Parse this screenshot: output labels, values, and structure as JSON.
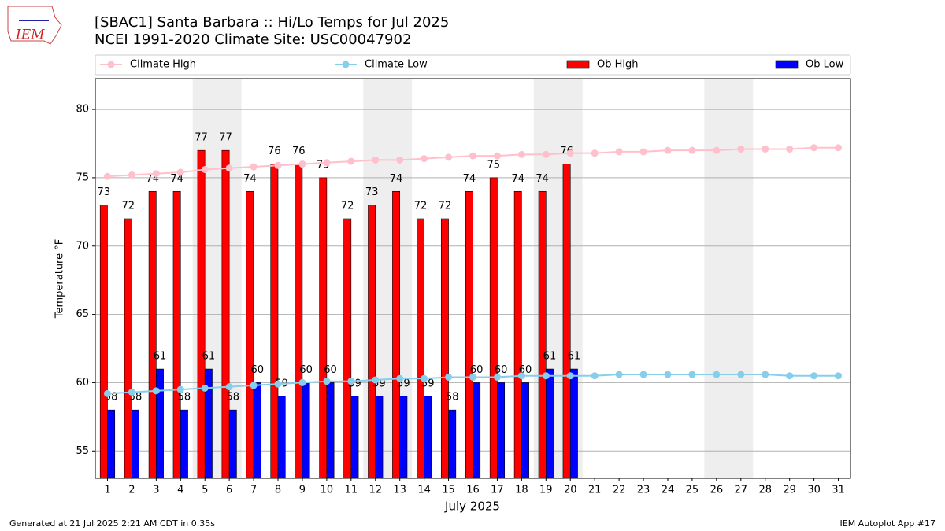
{
  "logo_text": "IEM",
  "footer": {
    "left": "Generated at 21 Jul 2025 2:21 AM CDT in 0.35s",
    "right": "IEM Autoplot App #17"
  },
  "chart_data": {
    "type": "bar",
    "title": "[SBAC1] Santa Barbara :: Hi/Lo Temps for Jul 2025",
    "subtitle": "NCEI 1991-2020 Climate Site: USC00047902",
    "x_label": "July 2025",
    "y_label": "Temperature °F",
    "x": [
      1,
      2,
      3,
      4,
      5,
      6,
      7,
      8,
      9,
      10,
      11,
      12,
      13,
      14,
      15,
      16,
      17,
      18,
      19,
      20,
      21,
      22,
      23,
      24,
      25,
      26,
      27,
      28,
      29,
      30,
      31
    ],
    "xlim": [
      0.5,
      31.5
    ],
    "xticks": [
      1,
      2,
      3,
      4,
      5,
      6,
      7,
      8,
      9,
      10,
      11,
      12,
      13,
      14,
      15,
      16,
      17,
      18,
      19,
      20,
      21,
      22,
      23,
      24,
      25,
      26,
      27,
      28,
      29,
      30,
      31
    ],
    "ylim": [
      53,
      82.25
    ],
    "yticks": [
      55,
      60,
      65,
      70,
      75,
      80
    ],
    "grid": true,
    "shaded_ranges": [
      [
        5,
        6
      ],
      [
        12,
        13
      ],
      [
        19,
        20
      ],
      [
        26,
        27
      ]
    ],
    "shade_color": "#eeeeee",
    "series": [
      {
        "name": "Climate High",
        "type": "line",
        "color": "#ffc0cb",
        "values": [
          75.1,
          75.2,
          75.3,
          75.4,
          75.6,
          75.7,
          75.8,
          75.9,
          76.0,
          76.1,
          76.2,
          76.3,
          76.3,
          76.4,
          76.5,
          76.6,
          76.6,
          76.7,
          76.7,
          76.8,
          76.8,
          76.9,
          76.9,
          77.0,
          77.0,
          77.0,
          77.1,
          77.1,
          77.1,
          77.2,
          77.2
        ]
      },
      {
        "name": "Climate Low",
        "type": "line",
        "color": "#87ceeb",
        "values": [
          59.2,
          59.3,
          59.4,
          59.5,
          59.6,
          59.7,
          59.8,
          59.9,
          60.0,
          60.1,
          60.1,
          60.2,
          60.3,
          60.3,
          60.4,
          60.4,
          60.4,
          60.5,
          60.5,
          60.5,
          60.5,
          60.6,
          60.6,
          60.6,
          60.6,
          60.6,
          60.6,
          60.6,
          60.5,
          60.5,
          60.5
        ]
      },
      {
        "name": "Ob High",
        "type": "bar",
        "color": "#ff0000",
        "offset": -0.15,
        "values": [
          73,
          72,
          74,
          74,
          77,
          77,
          74,
          76,
          76,
          75,
          72,
          73,
          74,
          72,
          72,
          74,
          75,
          74,
          74,
          76,
          null,
          null,
          null,
          null,
          null,
          null,
          null,
          null,
          null,
          null,
          null
        ]
      },
      {
        "name": "Ob Low",
        "type": "bar",
        "color": "#0000ff",
        "offset": 0.15,
        "values": [
          58,
          58,
          61,
          58,
          61,
          58,
          60,
          59,
          60,
          60,
          59,
          59,
          59,
          59,
          58,
          60,
          60,
          60,
          61,
          61,
          null,
          null,
          null,
          null,
          null,
          null,
          null,
          null,
          null,
          null,
          null
        ]
      }
    ]
  }
}
